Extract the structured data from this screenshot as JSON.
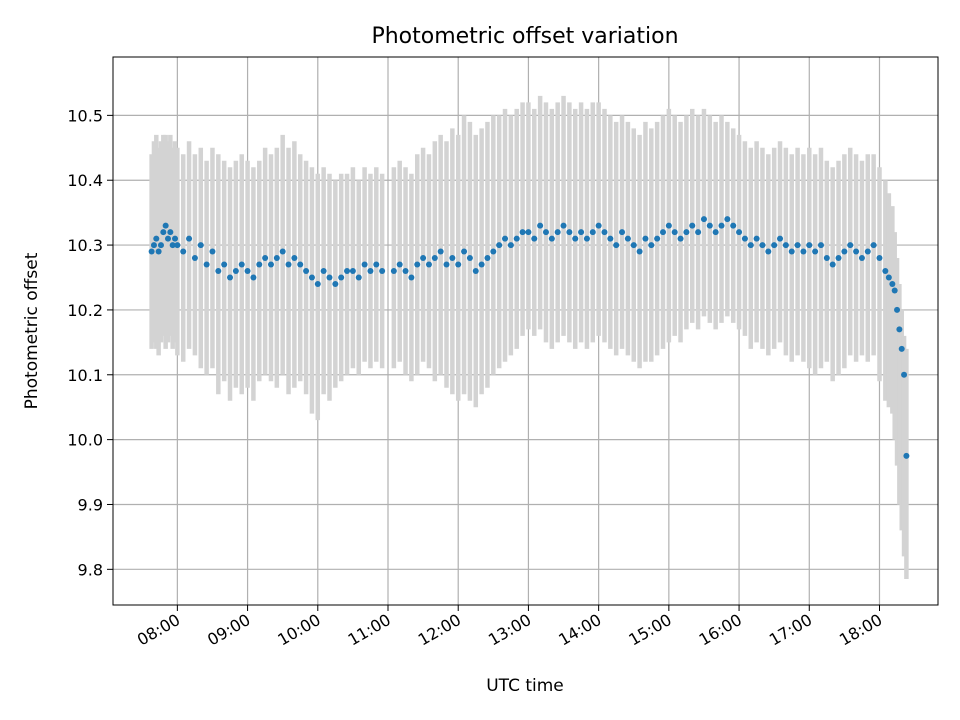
{
  "chart_data": {
    "type": "scatter",
    "title": "Photometric offset variation",
    "xlabel": "UTC time",
    "ylabel": "Photometric offset",
    "x_ticks": [
      "08:00",
      "09:00",
      "10:00",
      "11:00",
      "12:00",
      "13:00",
      "14:00",
      "15:00",
      "16:00",
      "17:00",
      "18:00"
    ],
    "y_ticks": [
      9.8,
      9.9,
      10.0,
      10.1,
      10.2,
      10.3,
      10.4,
      10.5
    ],
    "xlim": [
      "07:05",
      "18:50"
    ],
    "ylim": [
      9.745,
      10.59
    ],
    "grid": true,
    "errorbar_color": "#d3d3d3",
    "point_color": "#1f77b4",
    "series": [
      {
        "x": [
          "07:38",
          "07:40",
          "07:42",
          "07:44",
          "07:46",
          "07:48",
          "07:50",
          "07:52",
          "07:54",
          "07:56",
          "07:58",
          "08:00",
          "08:05",
          "08:10",
          "08:15",
          "08:20",
          "08:25",
          "08:30",
          "08:35",
          "08:40",
          "08:45",
          "08:50",
          "08:55",
          "09:00",
          "09:05",
          "09:10",
          "09:15",
          "09:20",
          "09:25",
          "09:30",
          "09:35",
          "09:40",
          "09:45",
          "09:50",
          "09:55",
          "10:00",
          "10:05",
          "10:10",
          "10:15",
          "10:20",
          "10:25",
          "10:30",
          "10:35",
          "10:40",
          "10:45",
          "10:50",
          "10:55",
          "11:05",
          "11:10",
          "11:15",
          "11:20",
          "11:25",
          "11:30",
          "11:35",
          "11:40",
          "11:45",
          "11:50",
          "11:55",
          "12:00",
          "12:05",
          "12:10",
          "12:15",
          "12:20",
          "12:25",
          "12:30",
          "12:35",
          "12:40",
          "12:45",
          "12:50",
          "12:55",
          "13:00",
          "13:05",
          "13:10",
          "13:15",
          "13:20",
          "13:25",
          "13:30",
          "13:35",
          "13:40",
          "13:45",
          "13:50",
          "13:55",
          "14:00",
          "14:05",
          "14:10",
          "14:15",
          "14:20",
          "14:25",
          "14:30",
          "14:35",
          "14:40",
          "14:45",
          "14:50",
          "14:55",
          "15:00",
          "15:05",
          "15:10",
          "15:15",
          "15:20",
          "15:25",
          "15:30",
          "15:35",
          "15:40",
          "15:45",
          "15:50",
          "15:55",
          "16:00",
          "16:05",
          "16:10",
          "16:15",
          "16:20",
          "16:25",
          "16:30",
          "16:35",
          "16:40",
          "16:45",
          "16:50",
          "16:55",
          "17:00",
          "17:05",
          "17:10",
          "17:15",
          "17:20",
          "17:25",
          "17:30",
          "17:35",
          "17:40",
          "17:45",
          "17:50",
          "17:55",
          "18:00",
          "18:05",
          "18:08",
          "18:11",
          "18:13",
          "18:15",
          "18:17",
          "18:19",
          "18:21",
          "18:23"
        ],
        "y": [
          10.29,
          10.3,
          10.31,
          10.29,
          10.3,
          10.32,
          10.33,
          10.31,
          10.32,
          10.3,
          10.31,
          10.3,
          10.29,
          10.31,
          10.28,
          10.3,
          10.27,
          10.29,
          10.26,
          10.27,
          10.25,
          10.26,
          10.27,
          10.26,
          10.25,
          10.27,
          10.28,
          10.27,
          10.28,
          10.29,
          10.27,
          10.28,
          10.27,
          10.26,
          10.25,
          10.24,
          10.26,
          10.25,
          10.24,
          10.25,
          10.26,
          10.26,
          10.25,
          10.27,
          10.26,
          10.27,
          10.26,
          10.26,
          10.27,
          10.26,
          10.25,
          10.27,
          10.28,
          10.27,
          10.28,
          10.29,
          10.27,
          10.28,
          10.27,
          10.29,
          10.28,
          10.26,
          10.27,
          10.28,
          10.29,
          10.3,
          10.31,
          10.3,
          10.31,
          10.32,
          10.32,
          10.31,
          10.33,
          10.32,
          10.31,
          10.32,
          10.33,
          10.32,
          10.31,
          10.32,
          10.31,
          10.32,
          10.33,
          10.32,
          10.31,
          10.3,
          10.32,
          10.31,
          10.3,
          10.29,
          10.31,
          10.3,
          10.31,
          10.32,
          10.33,
          10.32,
          10.31,
          10.32,
          10.33,
          10.32,
          10.34,
          10.33,
          10.32,
          10.33,
          10.34,
          10.33,
          10.32,
          10.31,
          10.3,
          10.31,
          10.3,
          10.29,
          10.3,
          10.31,
          10.3,
          10.29,
          10.3,
          10.29,
          10.3,
          10.29,
          10.3,
          10.28,
          10.27,
          10.28,
          10.29,
          10.3,
          10.29,
          10.28,
          10.29,
          10.3,
          10.28,
          10.26,
          10.25,
          10.24,
          10.23,
          10.2,
          10.17,
          10.14,
          10.1,
          9.975
        ],
        "err_low": [
          10.14,
          10.15,
          10.14,
          10.13,
          10.15,
          10.16,
          10.14,
          10.15,
          10.16,
          10.14,
          10.15,
          10.13,
          10.12,
          10.14,
          10.13,
          10.11,
          10.1,
          10.11,
          10.07,
          10.09,
          10.06,
          10.08,
          10.07,
          10.08,
          10.06,
          10.09,
          10.1,
          10.09,
          10.08,
          10.1,
          10.07,
          10.08,
          10.09,
          10.07,
          10.04,
          10.03,
          10.07,
          10.06,
          10.08,
          10.09,
          10.1,
          10.11,
          10.1,
          10.12,
          10.11,
          10.12,
          10.11,
          10.11,
          10.12,
          10.1,
          10.09,
          10.1,
          10.12,
          10.11,
          10.09,
          10.1,
          10.08,
          10.07,
          10.06,
          10.07,
          10.06,
          10.05,
          10.07,
          10.08,
          10.1,
          10.11,
          10.12,
          10.13,
          10.14,
          10.16,
          10.17,
          10.16,
          10.17,
          10.15,
          10.14,
          10.15,
          10.16,
          10.15,
          10.14,
          10.15,
          10.14,
          10.15,
          10.16,
          10.15,
          10.14,
          10.13,
          10.14,
          10.13,
          10.12,
          10.11,
          10.12,
          10.12,
          10.13,
          10.14,
          10.15,
          10.16,
          10.15,
          10.17,
          10.18,
          10.17,
          10.19,
          10.18,
          10.17,
          10.18,
          10.19,
          10.18,
          10.17,
          10.16,
          10.14,
          10.15,
          10.14,
          10.13,
          10.14,
          10.15,
          10.13,
          10.12,
          10.13,
          10.12,
          10.11,
          10.1,
          10.11,
          10.12,
          10.09,
          10.1,
          10.11,
          10.13,
          10.12,
          10.13,
          10.12,
          10.13,
          10.09,
          10.06,
          10.05,
          10.04,
          10.0,
          9.96,
          9.9,
          9.86,
          9.82,
          9.785
        ],
        "err_high": [
          10.44,
          10.46,
          10.47,
          10.45,
          10.46,
          10.47,
          10.47,
          10.46,
          10.47,
          10.45,
          10.46,
          10.45,
          10.44,
          10.46,
          10.44,
          10.45,
          10.43,
          10.45,
          10.44,
          10.43,
          10.42,
          10.43,
          10.44,
          10.43,
          10.42,
          10.43,
          10.45,
          10.44,
          10.45,
          10.47,
          10.45,
          10.46,
          10.44,
          10.43,
          10.42,
          10.41,
          10.42,
          10.41,
          10.4,
          10.41,
          10.41,
          10.42,
          10.4,
          10.42,
          10.41,
          10.42,
          10.41,
          10.42,
          10.43,
          10.42,
          10.41,
          10.44,
          10.45,
          10.44,
          10.46,
          10.47,
          10.46,
          10.48,
          10.47,
          10.5,
          10.49,
          10.47,
          10.48,
          10.49,
          10.5,
          10.5,
          10.51,
          10.5,
          10.51,
          10.52,
          10.52,
          10.51,
          10.53,
          10.52,
          10.51,
          10.52,
          10.53,
          10.52,
          10.51,
          10.52,
          10.51,
          10.52,
          10.52,
          10.51,
          10.5,
          10.49,
          10.5,
          10.49,
          10.48,
          10.47,
          10.49,
          10.48,
          10.49,
          10.5,
          10.51,
          10.5,
          10.49,
          10.5,
          10.51,
          10.5,
          10.51,
          10.5,
          10.49,
          10.5,
          10.49,
          10.48,
          10.47,
          10.46,
          10.45,
          10.46,
          10.45,
          10.44,
          10.45,
          10.46,
          10.45,
          10.44,
          10.45,
          10.44,
          10.45,
          10.44,
          10.45,
          10.43,
          10.42,
          10.43,
          10.44,
          10.45,
          10.44,
          10.43,
          10.44,
          10.44,
          10.42,
          10.4,
          10.38,
          10.36,
          10.32,
          10.28,
          10.24,
          10.2,
          10.16,
          10.14
        ]
      }
    ]
  }
}
